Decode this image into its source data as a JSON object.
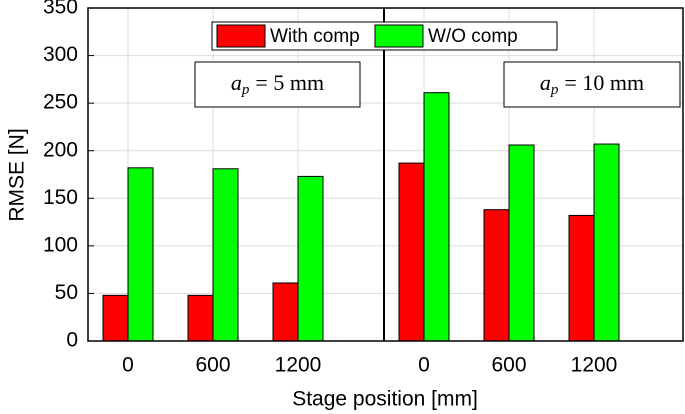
{
  "chart_data": {
    "type": "bar",
    "ylabel": "RMSE [N]",
    "xlabel": "Stage position [mm]",
    "categories": [
      "0",
      "600",
      "1200",
      "0",
      "600",
      "1200"
    ],
    "series": [
      {
        "name": "With comp",
        "color": "#ff0000",
        "values": [
          48,
          48,
          61,
          187,
          138,
          132
        ]
      },
      {
        "name": "W/O comp",
        "color": "#00ff00",
        "values": [
          182,
          181,
          173,
          261,
          206,
          207
        ]
      }
    ],
    "annotations": [
      {
        "var": "a",
        "sub": "p",
        "rest": "= 5 mm"
      },
      {
        "var": "a",
        "sub": "p",
        "rest": "= 10 mm"
      }
    ],
    "ylim": [
      0,
      350
    ],
    "yticks": [
      0,
      50,
      100,
      150,
      200,
      250,
      300,
      350
    ],
    "grid": true
  }
}
